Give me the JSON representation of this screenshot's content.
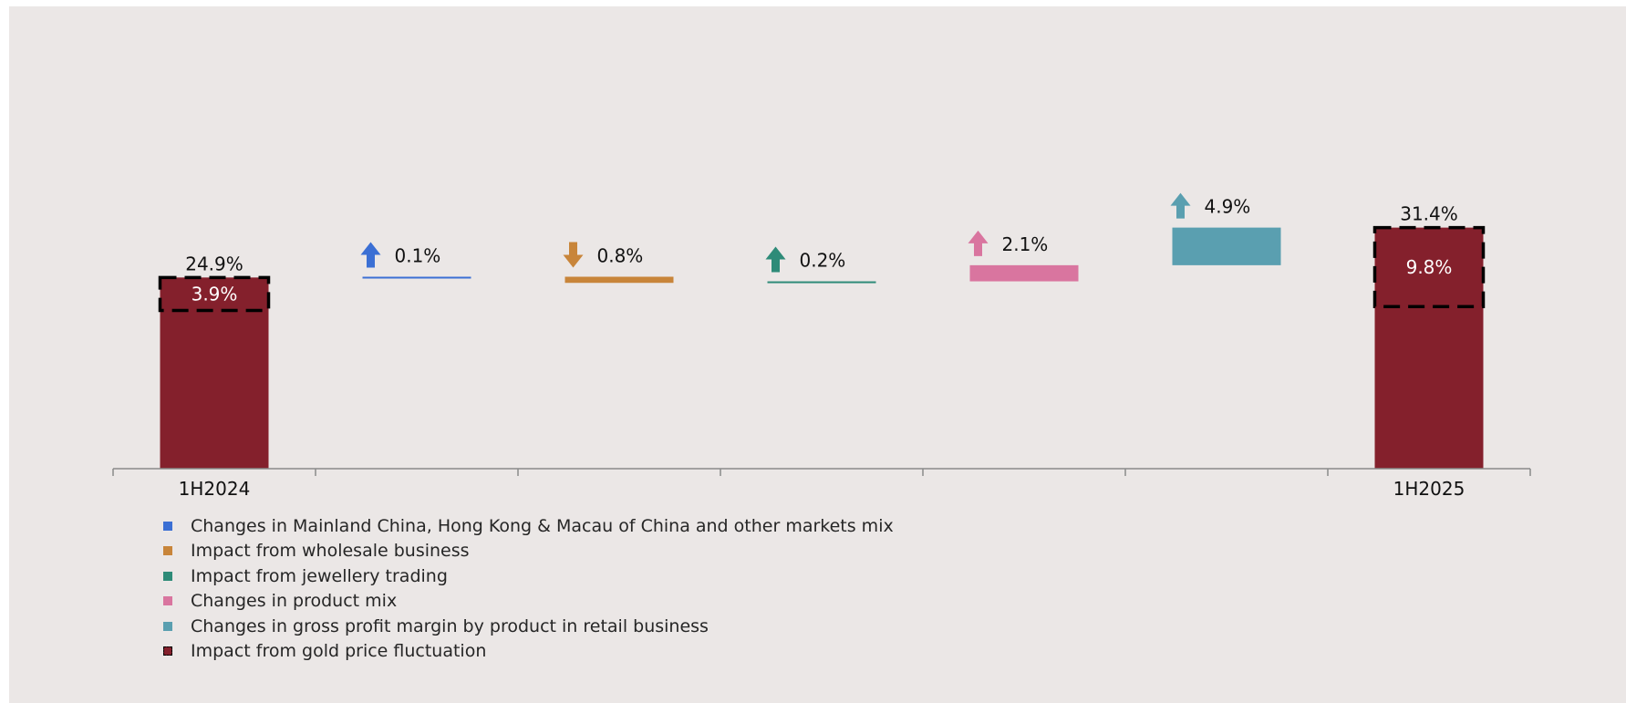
{
  "chart_data": {
    "type": "waterfall",
    "categories": [
      "1H2024",
      "",
      "",
      "",
      "",
      "",
      "1H2025"
    ],
    "ylim": [
      0,
      35
    ],
    "grid": false,
    "legend_position": "bottom-left",
    "start": {
      "label": "1H2024",
      "value": 24.9,
      "value_label": "24.9%",
      "gold_impact": 3.9,
      "gold_impact_label": "3.9%"
    },
    "steps": [
      {
        "series": "Changes in Mainland China, Hong Kong & Macau of China and other markets mix",
        "direction": "up",
        "value": 0.1,
        "value_label": "0.1%",
        "color": "#3b6fd4"
      },
      {
        "series": "Impact from wholesale business",
        "direction": "down",
        "value": -0.8,
        "value_label": "0.8%",
        "color": "#c8853a"
      },
      {
        "series": "Impact from jewellery trading",
        "direction": "up",
        "value": 0.2,
        "value_label": "0.2%",
        "color": "#2e8b78"
      },
      {
        "series": "Changes in product mix",
        "direction": "up",
        "value": 2.1,
        "value_label": "2.1%",
        "color": "#d9759f"
      },
      {
        "series": "Changes in gross profit margin by product in retail business",
        "direction": "up",
        "value": 4.9,
        "value_label": "4.9%",
        "color": "#5a9fb0"
      }
    ],
    "end": {
      "label": "1H2025",
      "value": 31.4,
      "value_label": "31.4%",
      "gold_impact": 9.8,
      "gold_impact_label": "9.8%"
    },
    "total_color": "#84202c"
  },
  "legend": [
    {
      "label": "Changes in Mainland China, Hong Kong & Macau of China and other markets mix",
      "color": "#3b6fd4"
    },
    {
      "label": "Impact from wholesale business",
      "color": "#c8853a"
    },
    {
      "label": "Impact from jewellery trading",
      "color": "#2e8b78"
    },
    {
      "label": "Changes in product mix",
      "color": "#d9759f"
    },
    {
      "label": "Changes in gross profit margin by product in retail business",
      "color": "#5a9fb0"
    },
    {
      "label": "Impact from gold price fluctuation",
      "color": "#84202c",
      "dashed": true
    }
  ]
}
